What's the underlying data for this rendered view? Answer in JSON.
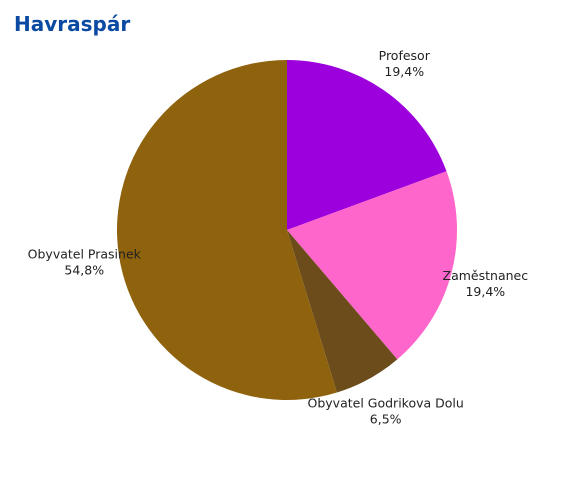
{
  "chart_data": {
    "type": "pie",
    "title": "Havraspár",
    "slices": [
      {
        "label": "Profesor",
        "value": 19.4,
        "value_label": "19,4%",
        "color": "#9b00dd"
      },
      {
        "label": "Zaměstnanec",
        "value": 19.4,
        "value_label": "19,4%",
        "color": "#ff66cc"
      },
      {
        "label": "Obyvatel Godrikova Dolu",
        "value": 6.5,
        "value_label": "6,5%",
        "color": "#6b4c1a"
      },
      {
        "label": "Obyvatel Prasinek",
        "value": 54.8,
        "value_label": "54,8%",
        "color": "#8f620d"
      }
    ],
    "start_angle": "12 o'clock",
    "direction": "clockwise",
    "legend": "none",
    "labels": "outside slices"
  }
}
